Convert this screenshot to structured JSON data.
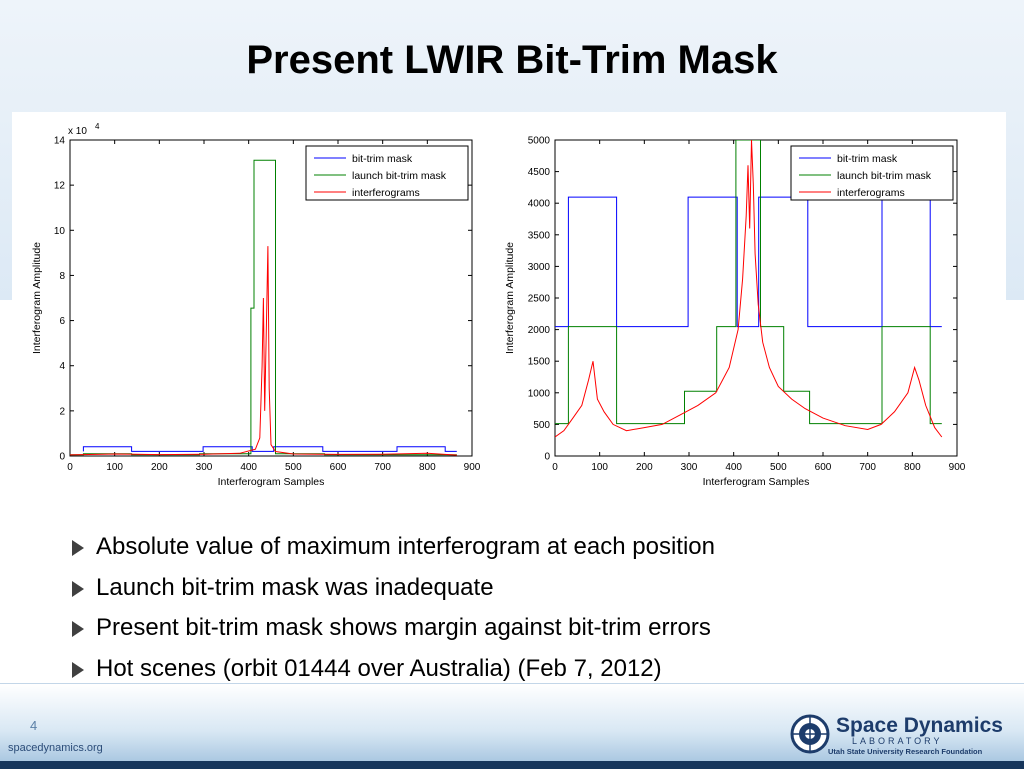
{
  "slide": {
    "title": "Present LWIR Bit-Trim Mask",
    "bullets": [
      "Absolute value of maximum interferogram at each position",
      "Launch bit-trim mask was inadequate",
      "Present bit-trim mask shows margin against bit-trim errors",
      "Hot scenes (orbit 01444 over Australia) (Feb 7, 2012)"
    ],
    "page_number": "4",
    "footer_url": "spacedynamics.org",
    "logo": {
      "name": "Space Dynamics",
      "sub": "LABORATORY",
      "tagline": "Utah State University Research Foundation"
    },
    "colors": {
      "bit_trim_mask": "#0000ff",
      "launch_bit_trim_mask": "#008000",
      "interferograms": "#ff0000",
      "footer_band": "#16365c"
    }
  },
  "chart_data": [
    {
      "type": "line",
      "title": "",
      "xlabel": "Interferogram Samples",
      "ylabel": "Interferogram Amplitude",
      "xlim": [
        0,
        900
      ],
      "ylim": [
        0,
        140000
      ],
      "y_multiplier_label": "x 10",
      "y_multiplier_exp": "4",
      "x_ticks": [
        0,
        100,
        200,
        300,
        400,
        500,
        600,
        700,
        800,
        900
      ],
      "x_tick_labels": [
        "0",
        "100",
        "200",
        "300",
        "400",
        "500",
        "600",
        "700",
        "800",
        "900"
      ],
      "y_ticks": [
        0,
        20000,
        40000,
        60000,
        80000,
        100000,
        120000,
        140000
      ],
      "y_tick_labels": [
        "0",
        "2",
        "4",
        "6",
        "8",
        "10",
        "12",
        "14"
      ],
      "legend_position": "top-right",
      "series": [
        {
          "name": "bit-trim mask",
          "color": "#0000ff",
          "points": [
            [
              30,
              2048
            ],
            [
              30,
              4096
            ],
            [
              138,
              4096
            ],
            [
              138,
              2048
            ],
            [
              298,
              2048
            ],
            [
              298,
              4096
            ],
            [
              408,
              4096
            ],
            [
              408,
              2048
            ],
            [
              456,
              2048
            ],
            [
              456,
              4096
            ],
            [
              566,
              4096
            ],
            [
              566,
              2048
            ],
            [
              732,
              2048
            ],
            [
              732,
              4096
            ],
            [
              840,
              4096
            ],
            [
              840,
              2048
            ],
            [
              866,
              2048
            ]
          ]
        },
        {
          "name": "launch bit-trim mask",
          "color": "#008000",
          "points": [
            [
              0,
              512
            ],
            [
              30,
              512
            ],
            [
              30,
              1024
            ],
            [
              138,
              1024
            ],
            [
              138,
              512
            ],
            [
              290,
              512
            ],
            [
              290,
              1024
            ],
            [
              405,
              1024
            ],
            [
              405,
              65536
            ],
            [
              412,
              65536
            ],
            [
              412,
              131072
            ],
            [
              460,
              131072
            ],
            [
              460,
              1024
            ],
            [
              570,
              1024
            ],
            [
              570,
              512
            ],
            [
              866,
              512
            ]
          ]
        },
        {
          "name": "interferograms",
          "color": "#ff0000",
          "points": [
            [
              0,
              500
            ],
            [
              100,
              900
            ],
            [
              200,
              600
            ],
            [
              300,
              800
            ],
            [
              380,
              1200
            ],
            [
              415,
              3000
            ],
            [
              425,
              8000
            ],
            [
              430,
              40000
            ],
            [
              433,
              70000
            ],
            [
              436,
              20000
            ],
            [
              440,
              60000
            ],
            [
              443,
              93000
            ],
            [
              446,
              30000
            ],
            [
              450,
              5000
            ],
            [
              460,
              2000
            ],
            [
              500,
              900
            ],
            [
              600,
              700
            ],
            [
              700,
              800
            ],
            [
              800,
              1200
            ],
            [
              866,
              400
            ]
          ]
        }
      ]
    },
    {
      "type": "line",
      "title": "",
      "xlabel": "Interferogram Samples",
      "ylabel": "Interferogram Amplitude",
      "xlim": [
        0,
        900
      ],
      "ylim": [
        0,
        5000
      ],
      "x_ticks": [
        0,
        100,
        200,
        300,
        400,
        500,
        600,
        700,
        800,
        900
      ],
      "x_tick_labels": [
        "0",
        "100",
        "200",
        "300",
        "400",
        "500",
        "600",
        "700",
        "800",
        "900"
      ],
      "y_ticks": [
        0,
        500,
        1000,
        1500,
        2000,
        2500,
        3000,
        3500,
        4000,
        4500,
        5000
      ],
      "y_tick_labels": [
        "0",
        "500",
        "1000",
        "1500",
        "2000",
        "2500",
        "3000",
        "3500",
        "4000",
        "4500",
        "5000"
      ],
      "legend_position": "top-right",
      "series": [
        {
          "name": "bit-trim mask",
          "color": "#0000ff",
          "points": [
            [
              0,
              2048
            ],
            [
              30,
              2048
            ],
            [
              30,
              4096
            ],
            [
              138,
              4096
            ],
            [
              138,
              2048
            ],
            [
              298,
              2048
            ],
            [
              298,
              4096
            ],
            [
              408,
              4096
            ],
            [
              408,
              2048
            ],
            [
              456,
              2048
            ],
            [
              456,
              4096
            ],
            [
              566,
              4096
            ],
            [
              566,
              2048
            ],
            [
              732,
              2048
            ],
            [
              732,
              4096
            ],
            [
              840,
              4096
            ],
            [
              840,
              2048
            ],
            [
              866,
              2048
            ]
          ]
        },
        {
          "name": "launch bit-trim mask",
          "color": "#008000",
          "points": [
            [
              0,
              512
            ],
            [
              30,
              512
            ],
            [
              30,
              2048
            ],
            [
              138,
              2048
            ],
            [
              138,
              512
            ],
            [
              290,
              512
            ],
            [
              290,
              1024
            ],
            [
              362,
              1024
            ],
            [
              362,
              2048
            ],
            [
              405,
              2048
            ],
            [
              405,
              5000
            ],
            [
              412,
              5000
            ],
            [
              460,
              5000
            ],
            [
              460,
              2048
            ],
            [
              512,
              2048
            ],
            [
              512,
              1024
            ],
            [
              570,
              1024
            ],
            [
              570,
              512
            ],
            [
              732,
              512
            ],
            [
              732,
              2048
            ],
            [
              840,
              2048
            ],
            [
              840,
              512
            ],
            [
              866,
              512
            ]
          ]
        },
        {
          "name": "interferograms",
          "color": "#ff0000",
          "points": [
            [
              0,
              300
            ],
            [
              20,
              400
            ],
            [
              40,
              600
            ],
            [
              60,
              800
            ],
            [
              75,
              1200
            ],
            [
              85,
              1500
            ],
            [
              95,
              900
            ],
            [
              110,
              700
            ],
            [
              130,
              500
            ],
            [
              160,
              400
            ],
            [
              200,
              450
            ],
            [
              240,
              500
            ],
            [
              280,
              650
            ],
            [
              320,
              800
            ],
            [
              360,
              1000
            ],
            [
              390,
              1400
            ],
            [
              410,
              2000
            ],
            [
              420,
              2800
            ],
            [
              428,
              3800
            ],
            [
              432,
              4600
            ],
            [
              436,
              3600
            ],
            [
              440,
              5000
            ],
            [
              444,
              4300
            ],
            [
              448,
              3200
            ],
            [
              455,
              2400
            ],
            [
              465,
              1800
            ],
            [
              480,
              1400
            ],
            [
              500,
              1100
            ],
            [
              530,
              900
            ],
            [
              560,
              750
            ],
            [
              600,
              600
            ],
            [
              650,
              480
            ],
            [
              700,
              420
            ],
            [
              730,
              500
            ],
            [
              760,
              700
            ],
            [
              790,
              1000
            ],
            [
              805,
              1400
            ],
            [
              815,
              1200
            ],
            [
              830,
              800
            ],
            [
              850,
              450
            ],
            [
              866,
              300
            ]
          ]
        }
      ]
    }
  ]
}
